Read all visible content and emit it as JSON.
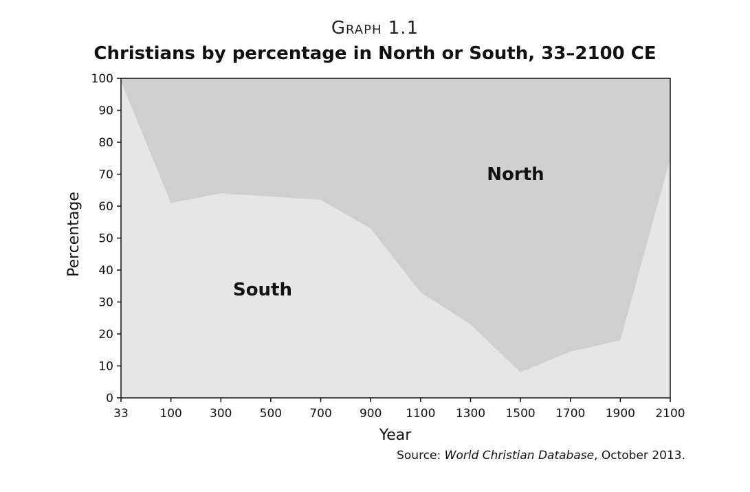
{
  "header": {
    "graph_number": "Graph 1.1",
    "title": "Christians by percentage in North or South, 33–2100 CE"
  },
  "source": {
    "prefix": "Source: ",
    "database": "World Christian Database",
    "suffix": ", October 2013."
  },
  "colors": {
    "north": "#cfcfd0",
    "south": "#e6e6e7",
    "axis": "#111111"
  },
  "chart_data": {
    "type": "area",
    "title": "Christians by percentage in North or South, 33–2100 CE",
    "xlabel": "Year",
    "ylabel": "Percentage",
    "categories": [
      "33",
      "100",
      "300",
      "500",
      "700",
      "900",
      "1100",
      "1300",
      "1500",
      "1700",
      "1900",
      "2100"
    ],
    "ylim": [
      0,
      100
    ],
    "yticks": [
      0,
      10,
      20,
      30,
      40,
      50,
      60,
      70,
      80,
      90,
      100
    ],
    "stacked": true,
    "grid": false,
    "series": [
      {
        "name": "South",
        "label": "South",
        "values": [
          99,
          61,
          64,
          63,
          62,
          53,
          33,
          23,
          8,
          14.5,
          18,
          75
        ]
      },
      {
        "name": "North",
        "label": "North",
        "values": [
          1,
          39,
          36,
          37,
          38,
          47,
          67,
          77,
          92,
          85.5,
          82,
          25
        ]
      }
    ]
  }
}
